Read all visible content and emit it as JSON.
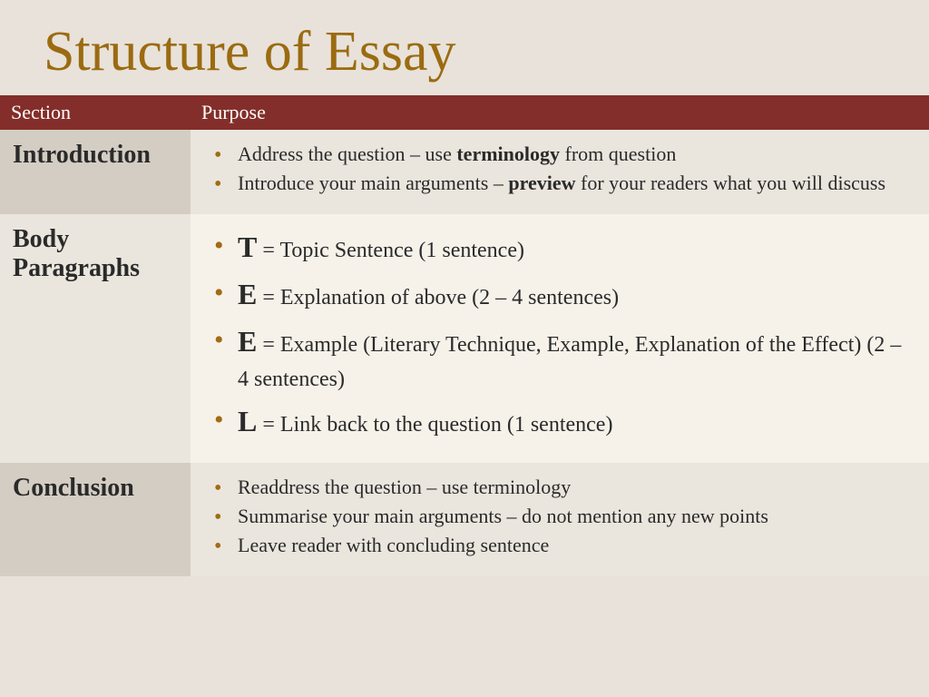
{
  "title": "Structure of Essay",
  "colors": {
    "title": "#9b6b11",
    "header_bg": "#832e2a",
    "header_text": "#ffffff",
    "bullet": "#a16b13",
    "page_bg": "#e8e2da",
    "cell_dark": "#d4cdc3",
    "cell_mid": "#eae5dd",
    "cell_light": "#f6f1e9",
    "text": "#2a2a2a"
  },
  "typography": {
    "title_fontsize": 62,
    "section_fontsize": 28,
    "body_fontsize": 22,
    "big_letter_fontsize": 32,
    "font_family": "Georgia, serif"
  },
  "table": {
    "headers": {
      "col1": "Section",
      "col2": "Purpose"
    },
    "rows": {
      "intro": {
        "section": "Introduction",
        "bullets": {
          "b1_pre": "Address the question – use ",
          "b1_bold": "terminology",
          "b1_post": " from question",
          "b2_pre": "Introduce your main arguments – ",
          "b2_bold": "preview",
          "b2_post": " for your readers what you will discuss"
        }
      },
      "body": {
        "section": "Body Paragraphs",
        "bullets": {
          "t_letter": "T",
          "t_text": " = Topic Sentence (1 sentence)",
          "e1_letter": "E",
          "e1_text": " = Explanation of above (2 – 4 sentences)",
          "e2_letter": "E",
          "e2_text": " = Example (Literary Technique, Example, Explanation of the Effect) (2 – 4 sentences)",
          "l_letter": "L",
          "l_text": " = Link back to the question (1 sentence)"
        }
      },
      "conc": {
        "section": "Conclusion",
        "bullets": {
          "b1": "Readdress the question – use terminology",
          "b2": "Summarise your main arguments – do not mention any new points",
          "b3": "Leave reader with concluding sentence"
        }
      }
    }
  }
}
